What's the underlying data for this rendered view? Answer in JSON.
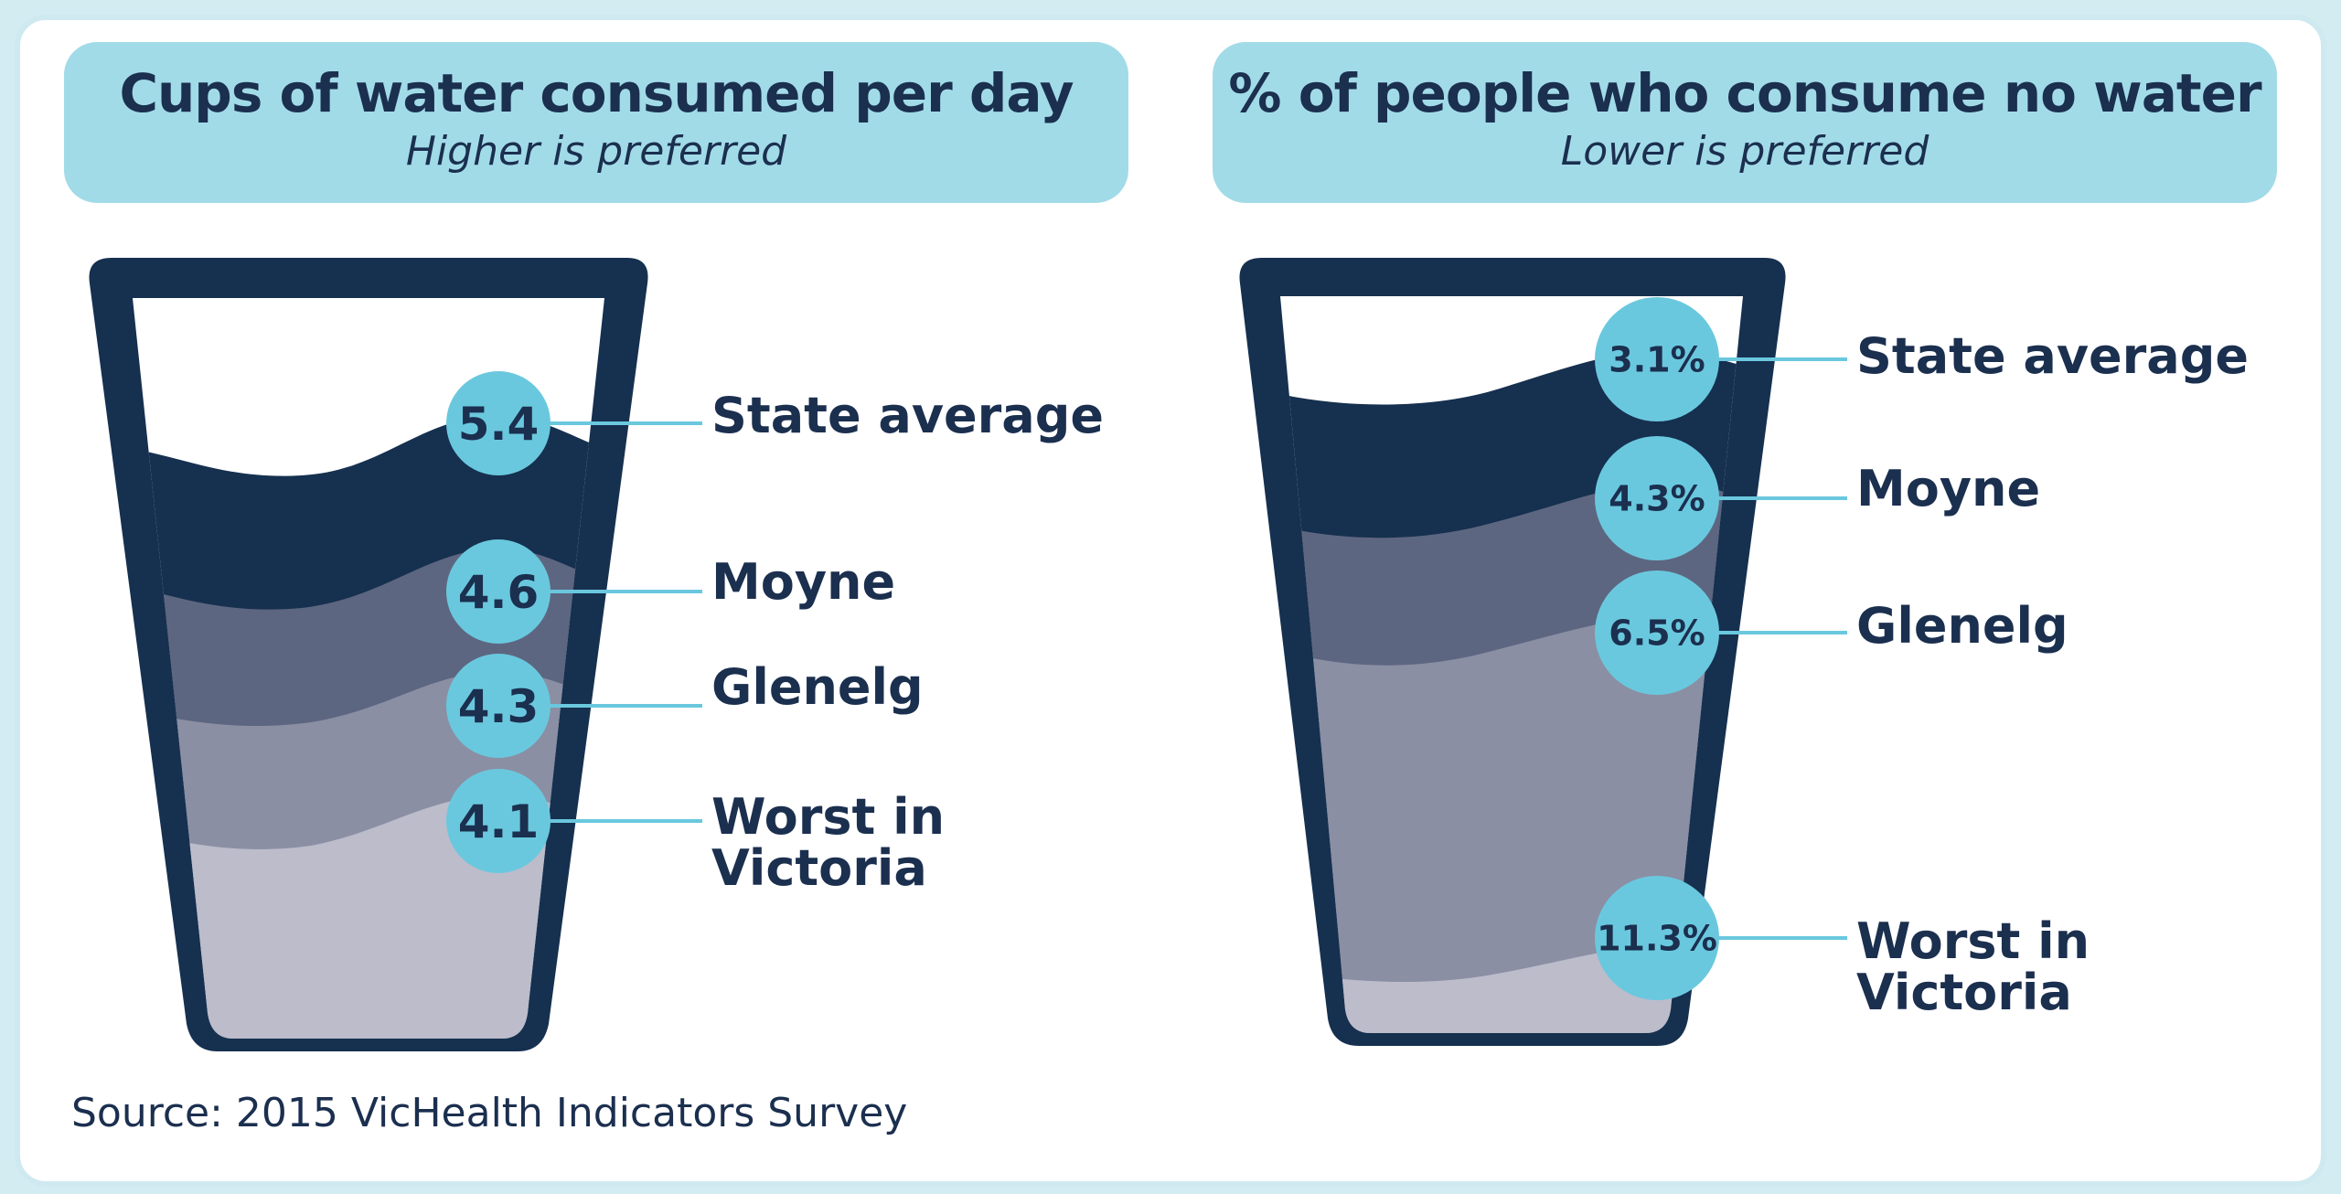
{
  "chart_data": [
    {
      "type": "bar",
      "title": "Cups of water consumed per day",
      "subtitle": "Higher is preferred",
      "categories": [
        "State average",
        "Moyne",
        "Glenelg",
        "Worst in Victoria"
      ],
      "values": [
        5.4,
        4.6,
        4.3,
        4.1
      ],
      "value_labels": [
        "5.4",
        "4.6",
        "4.3",
        "4.1"
      ]
    },
    {
      "type": "bar",
      "title": "% of people who consume no water",
      "subtitle": "Lower is preferred",
      "categories": [
        "State average",
        "Moyne",
        "Glenelg",
        "Worst in Victoria"
      ],
      "values": [
        3.1,
        4.3,
        6.5,
        11.3
      ],
      "value_labels": [
        "3.1%",
        "4.3%",
        "6.5%",
        "11.3%"
      ]
    }
  ],
  "footer": {
    "source": "Source: 2015 VicHealth Indicators Survey"
  },
  "colors": {
    "header_bg": "#a2dbe8",
    "text_navy": "#1b2f4f",
    "glass_outline": "#16304f",
    "bubble": "#6ac8de",
    "layers": [
      "#16304f",
      "#5d6680",
      "#8a8fa4",
      "#bcbccb"
    ]
  }
}
